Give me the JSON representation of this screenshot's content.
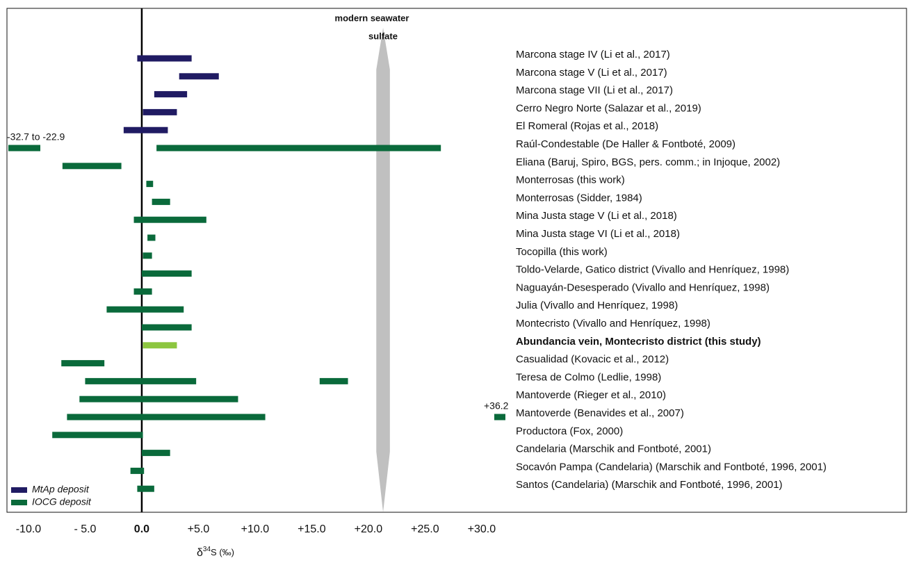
{
  "chart_data": {
    "type": "range-bar",
    "x_label": {
      "main": "δ",
      "sup": "34",
      "rest": "S (‰)"
    },
    "xlim": [
      -11.9,
      67.5
    ],
    "xticks": [
      {
        "value": -10,
        "label": "-10.0"
      },
      {
        "value": -5,
        "label": "- 5.0"
      },
      {
        "value": 0,
        "label": "0.0"
      },
      {
        "value": 5,
        "label": "+5.0"
      },
      {
        "value": 10,
        "label": "+10.0"
      },
      {
        "value": 15,
        "label": "+15.0"
      },
      {
        "value": 20,
        "label": "+20.0"
      },
      {
        "value": 25,
        "label": "+25.0"
      },
      {
        "value": 30,
        "label": "+30.0"
      }
    ],
    "reference_band": {
      "label_lines": [
        "modern seawater",
        "sulfate"
      ],
      "range": [
        20.7,
        21.9
      ],
      "color": "#c0c0c0"
    },
    "series": [
      {
        "name": "MtAp deposit",
        "color": "#201b63"
      },
      {
        "name": "IOCG deposit",
        "color": "#0a6a3b"
      }
    ],
    "legend": "bottom-left",
    "rows": [
      {
        "label": "Marcona stage IV (Li et al., 2017)",
        "series": 0,
        "ranges": [
          [
            -0.4,
            4.4
          ]
        ]
      },
      {
        "label": "Marcona stage V (Li et al., 2017)",
        "series": 0,
        "ranges": [
          [
            3.3,
            6.8
          ]
        ]
      },
      {
        "label": "Marcona stage VII (Li et al., 2017)",
        "series": 0,
        "ranges": [
          [
            1.1,
            4.0
          ]
        ]
      },
      {
        "label": "Cerro Negro Norte (Salazar et al., 2019)",
        "series": 0,
        "ranges": [
          [
            0.1,
            3.1
          ]
        ]
      },
      {
        "label": "El Romeral (Rojas et al., 2018)",
        "series": 0,
        "ranges": [
          [
            -1.6,
            2.3
          ]
        ]
      },
      {
        "label": "Raúl-Condestable (De Haller & Fontboté, 2009)",
        "series": 1,
        "ranges": [
          [
            1.3,
            26.4
          ]
        ],
        "offscale": {
          "range": [
            -32.7,
            -22.9
          ],
          "label": "-32.7 to -22.9"
        }
      },
      {
        "label": "Eliana (Baruj, Spiro, BGS, pers. comm.; in Injoque, 2002)",
        "series": 1,
        "ranges": [
          [
            -7.0,
            -1.8
          ]
        ]
      },
      {
        "label": "Monterrosas (this work)",
        "series": 1,
        "ranges": [
          [
            0.4,
            1.0
          ]
        ]
      },
      {
        "label": "Monterrosas (Sidder, 1984)",
        "series": 1,
        "ranges": [
          [
            0.9,
            2.5
          ]
        ]
      },
      {
        "label": "Mina Justa stage V (Li et al., 2018)",
        "series": 1,
        "ranges": [
          [
            -0.7,
            5.7
          ]
        ]
      },
      {
        "label": "Mina Justa stage VI (Li et al., 2018)",
        "series": 1,
        "ranges": [
          [
            0.5,
            1.2
          ]
        ]
      },
      {
        "label": "Tocopilla (this work)",
        "series": 1,
        "ranges": [
          [
            0.1,
            0.9
          ]
        ]
      },
      {
        "label": "Toldo-Velarde, Gatico district (Vivallo and Henríquez, 1998)",
        "series": 1,
        "ranges": [
          [
            0.0,
            4.4
          ]
        ]
      },
      {
        "label": "Naguayán-Desesperado  (Vivallo and Henríquez, 1998)",
        "series": 1,
        "ranges": [
          [
            -0.7,
            0.9
          ]
        ]
      },
      {
        "label": "Julia (Vivallo and Henríquez, 1998)",
        "series": 1,
        "ranges": [
          [
            -3.1,
            3.7
          ]
        ]
      },
      {
        "label": "Montecristo (Vivallo and Henríquez, 1998)",
        "series": 1,
        "ranges": [
          [
            0.0,
            4.4
          ]
        ]
      },
      {
        "label": "Abundancia vein, Montecristo district (this study)",
        "series": 1,
        "color": "#8cc63f",
        "bold": true,
        "ranges": [
          [
            0.1,
            3.1
          ]
        ]
      },
      {
        "label": "Casualidad (Kovacic et al., 2012)",
        "series": 1,
        "ranges": [
          [
            -7.1,
            -3.3
          ]
        ]
      },
      {
        "label": "Teresa de Colmo (Ledlie, 1998)",
        "series": 1,
        "ranges": [
          [
            -5.0,
            4.8
          ],
          [
            15.7,
            18.2
          ]
        ]
      },
      {
        "label": "Mantoverde (Rieger et al., 2010)",
        "series": 1,
        "ranges": [
          [
            -5.5,
            8.5
          ]
        ]
      },
      {
        "label": "Mantoverde (Benavides et al., 2007)",
        "series": 1,
        "ranges": [
          [
            -6.6,
            10.9
          ]
        ],
        "offscale": {
          "range": [
            36.2,
            36.2
          ],
          "label": "+36.2"
        }
      },
      {
        "label": "Productora (Fox, 2000)",
        "series": 1,
        "ranges": [
          [
            -7.9,
            0.1
          ]
        ]
      },
      {
        "label": "Candelaria (Marschik and Fontboté, 2001)",
        "series": 1,
        "ranges": [
          [
            0.0,
            2.5
          ]
        ]
      },
      {
        "label": "Socavón Pampa (Candelaria) (Marschik and Fontboté, 1996, 2001)",
        "series": 1,
        "ranges": [
          [
            -1.0,
            0.2
          ]
        ]
      },
      {
        "label": "Santos (Candelaria) (Marschik and Fontboté, 1996, 2001)",
        "series": 1,
        "ranges": [
          [
            -0.4,
            1.1
          ]
        ]
      }
    ]
  }
}
